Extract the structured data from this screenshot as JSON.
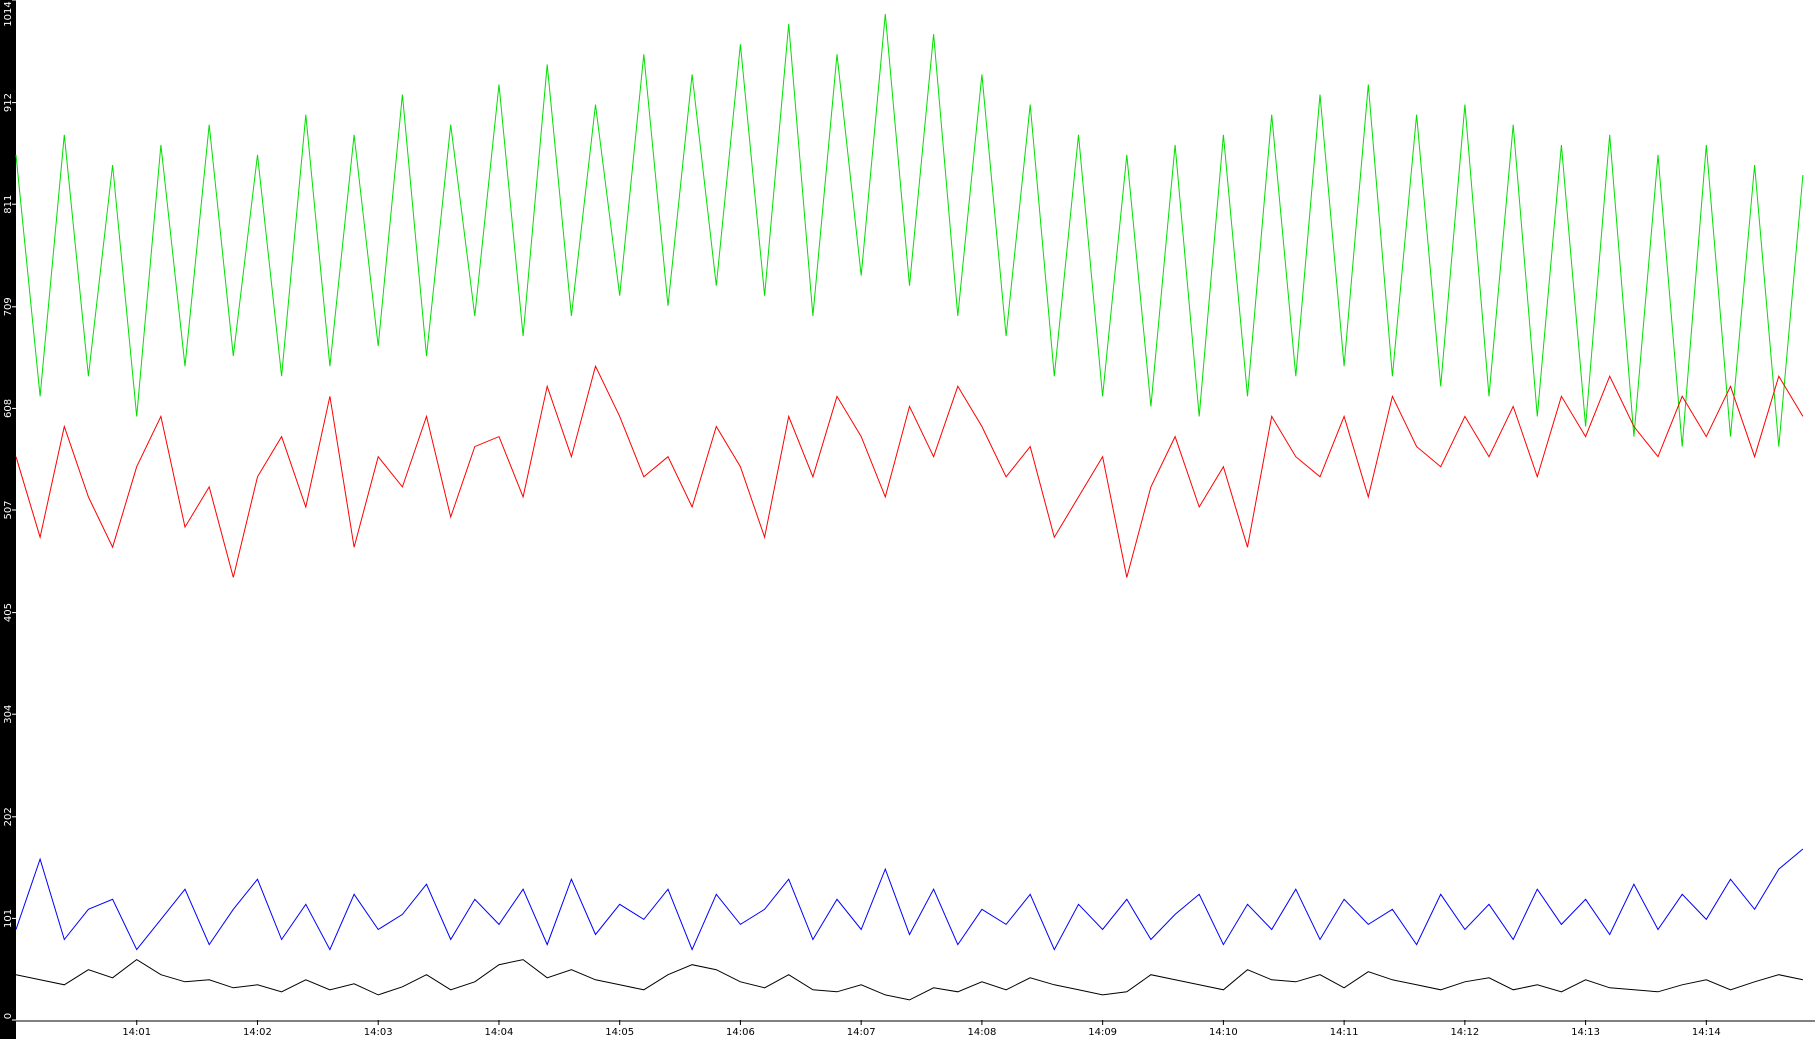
{
  "chart_data": {
    "type": "line",
    "x": [
      0,
      0.2,
      0.4,
      0.6,
      0.8,
      1,
      1.2,
      1.4,
      1.6,
      1.8,
      2,
      2.2,
      2.4,
      2.6,
      2.8,
      3,
      3.2,
      3.4,
      3.6,
      3.8,
      4,
      4.2,
      4.4,
      4.6,
      4.8,
      5,
      5.2,
      5.4,
      5.6,
      5.8,
      6,
      6.2,
      6.4,
      6.6,
      6.8,
      7,
      7.2,
      7.4,
      7.6,
      7.8,
      8,
      8.2,
      8.4,
      8.6,
      8.8,
      9,
      9.2,
      9.4,
      9.6,
      9.8,
      10,
      10.2,
      10.4,
      10.6,
      10.8,
      11,
      11.2,
      11.4,
      11.6,
      11.8,
      12,
      12.2,
      12.4,
      12.6,
      12.8,
      13,
      13.2,
      13.4,
      13.6,
      13.8,
      14,
      14.2,
      14.4,
      14.6,
      14.8
    ],
    "series": [
      {
        "color": "#00e000",
        "values": [
          860,
          620,
          880,
          640,
          850,
          600,
          870,
          650,
          890,
          660,
          860,
          640,
          900,
          650,
          880,
          670,
          920,
          660,
          890,
          700,
          930,
          680,
          950,
          700,
          910,
          720,
          960,
          710,
          940,
          730,
          970,
          720,
          990,
          700,
          960,
          740,
          1000,
          730,
          980,
          700,
          940,
          680,
          910,
          640,
          880,
          620,
          860,
          610,
          870,
          600,
          880,
          620,
          900,
          640,
          920,
          650,
          930,
          640,
          900,
          630,
          910,
          620,
          890,
          600,
          870,
          590,
          880,
          580,
          860,
          570,
          870,
          580,
          850,
          570,
          840
        ]
      },
      {
        "color": "#ff0000",
        "values": [
          560,
          480,
          590,
          520,
          470,
          550,
          600,
          490,
          530,
          440,
          540,
          580,
          510,
          620,
          470,
          560,
          530,
          600,
          500,
          570,
          580,
          520,
          630,
          560,
          650,
          600,
          540,
          560,
          510,
          590,
          550,
          480,
          600,
          540,
          620,
          580,
          520,
          610,
          560,
          630,
          590,
          540,
          570,
          480,
          520,
          560,
          440,
          530,
          580,
          510,
          550,
          470,
          600,
          560,
          540,
          600,
          520,
          620,
          570,
          550,
          600,
          560,
          610,
          540,
          620,
          580,
          640,
          590,
          560,
          620,
          580,
          630,
          560,
          640,
          600
        ]
      },
      {
        "color": "#0000ff",
        "values": [
          90,
          160,
          80,
          110,
          120,
          70,
          100,
          130,
          75,
          110,
          140,
          80,
          115,
          70,
          125,
          90,
          105,
          135,
          80,
          120,
          95,
          130,
          75,
          140,
          85,
          115,
          100,
          130,
          70,
          125,
          95,
          110,
          140,
          80,
          120,
          90,
          150,
          85,
          130,
          75,
          110,
          95,
          125,
          70,
          115,
          90,
          120,
          80,
          105,
          125,
          75,
          115,
          90,
          130,
          80,
          120,
          95,
          110,
          75,
          125,
          90,
          115,
          80,
          130,
          95,
          120,
          85,
          135,
          90,
          125,
          100,
          140,
          110,
          150,
          170
        ]
      },
      {
        "color": "#000000",
        "values": [
          45,
          40,
          35,
          50,
          42,
          60,
          45,
          38,
          40,
          32,
          35,
          28,
          40,
          30,
          36,
          25,
          33,
          45,
          30,
          38,
          55,
          60,
          42,
          50,
          40,
          35,
          30,
          45,
          55,
          50,
          38,
          32,
          45,
          30,
          28,
          35,
          25,
          20,
          32,
          28,
          38,
          30,
          42,
          35,
          30,
          25,
          28,
          45,
          40,
          35,
          30,
          50,
          40,
          38,
          45,
          32,
          48,
          40,
          35,
          30,
          38,
          42,
          30,
          35,
          28,
          40,
          32,
          30,
          28,
          35,
          40,
          30,
          38,
          45,
          40
        ]
      }
    ],
    "xlim": [
      0,
      14.9
    ],
    "xticks": [
      {
        "value": 1,
        "label": "14:01"
      },
      {
        "value": 2,
        "label": "14:02"
      },
      {
        "value": 3,
        "label": "14:03"
      },
      {
        "value": 4,
        "label": "14:04"
      },
      {
        "value": 5,
        "label": "14:05"
      },
      {
        "value": 6,
        "label": "14:06"
      },
      {
        "value": 7,
        "label": "14:07"
      },
      {
        "value": 8,
        "label": "14:08"
      },
      {
        "value": 9,
        "label": "14:09"
      },
      {
        "value": 10,
        "label": "14:10"
      },
      {
        "value": 11,
        "label": "14:11"
      },
      {
        "value": 12,
        "label": "14:12"
      },
      {
        "value": 13,
        "label": "14:13"
      },
      {
        "value": 14,
        "label": "14:14"
      }
    ],
    "ylim": [
      0,
      1014
    ],
    "yticks": [
      0,
      101,
      202,
      304,
      405,
      507,
      608,
      709,
      811,
      912,
      1014
    ]
  }
}
